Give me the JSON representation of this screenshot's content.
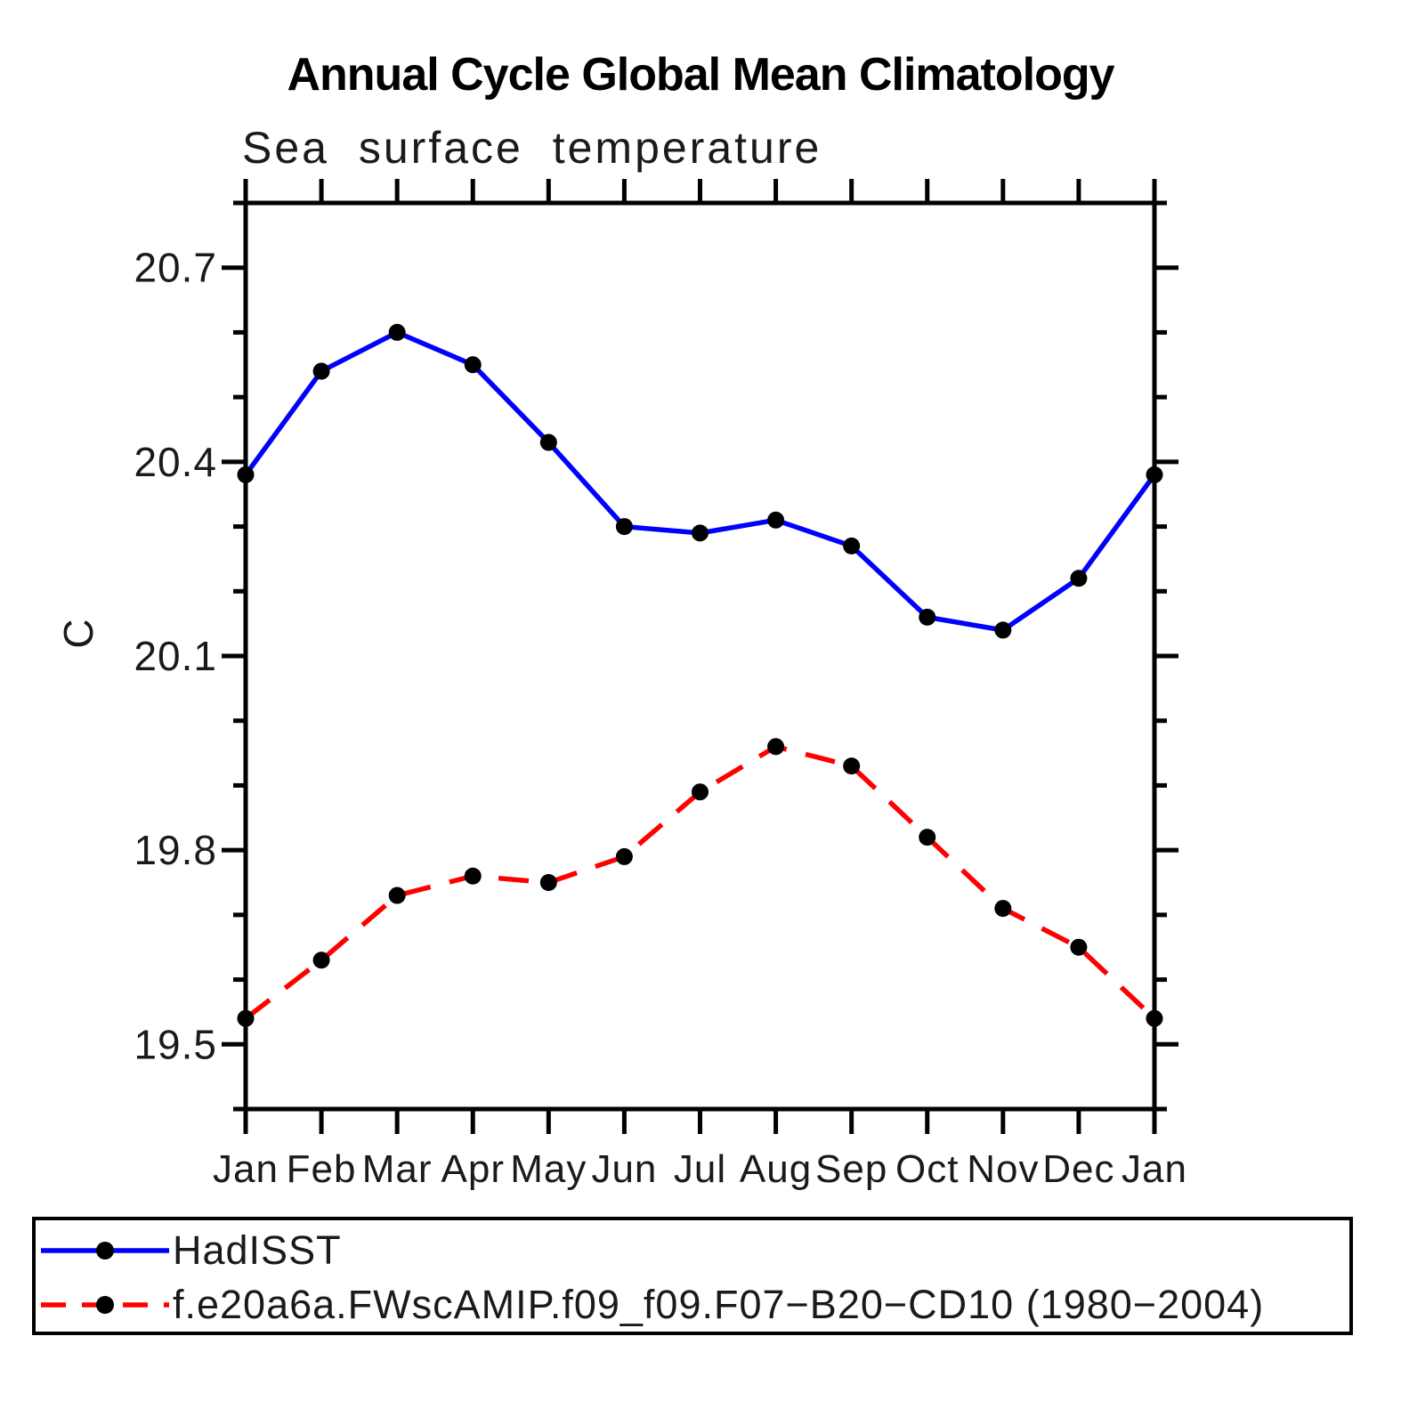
{
  "chart_data": {
    "type": "line",
    "title": "Annual Cycle Global Mean Climatology",
    "subtitle": "Sea surface temperature",
    "ylabel": "C",
    "categories": [
      "Jan",
      "Feb",
      "Mar",
      "Apr",
      "May",
      "Jun",
      "Jul",
      "Aug",
      "Sep",
      "Oct",
      "Nov",
      "Dec",
      "Jan"
    ],
    "series": [
      {
        "name": "HadISST",
        "color": "#0000ff",
        "line_style": "solid",
        "marker": "black-dot",
        "values": [
          20.38,
          20.54,
          20.6,
          20.55,
          20.43,
          20.3,
          20.29,
          20.31,
          20.27,
          20.16,
          20.14,
          20.22,
          20.38
        ]
      },
      {
        "name": "f.e20a6a.FWscAMIP.f09_f09.F07−B20−CD10 (1980−2004)",
        "color": "#ff0000",
        "line_style": "dashed",
        "marker": "black-dot",
        "values": [
          19.54,
          19.63,
          19.73,
          19.76,
          19.75,
          19.79,
          19.89,
          19.96,
          19.93,
          19.82,
          19.71,
          19.65,
          19.54
        ]
      }
    ],
    "ylim": [
      19.4,
      20.8
    ],
    "ytick_major": [
      19.5,
      19.8,
      20.1,
      20.4,
      20.7
    ],
    "ytick_minor_step": 0.1,
    "grid": false,
    "legend_position": "bottom-box",
    "axis_color": "#000000",
    "marker_color": "#000000"
  }
}
